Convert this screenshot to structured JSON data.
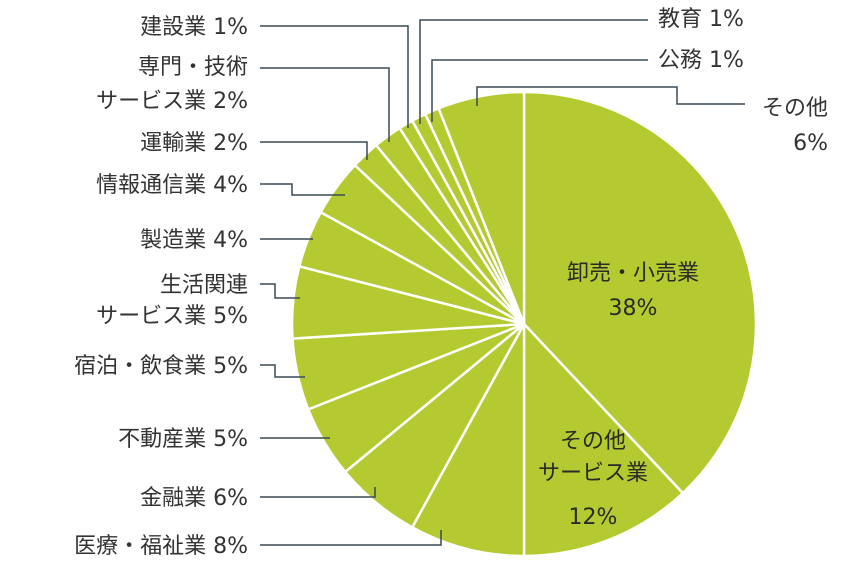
{
  "chart_data": {
    "type": "pie",
    "color": "#b5c930",
    "line_color": "#3a4a55",
    "slices": [
      {
        "name": "卸売・小売業",
        "value": 38,
        "label": [
          "卸売・小売業",
          "38%"
        ]
      },
      {
        "name": "その他サービス業",
        "value": 12,
        "label": [
          "その他",
          "サービス業",
          "12%"
        ]
      },
      {
        "name": "医療・福祉業",
        "value": 8,
        "label": [
          "医療・福祉業 8%"
        ]
      },
      {
        "name": "金融業",
        "value": 6,
        "label": [
          "金融業 6%"
        ]
      },
      {
        "name": "不動産業",
        "value": 5,
        "label": [
          "不動産業 5%"
        ]
      },
      {
        "name": "宿泊・飲食業",
        "value": 5,
        "label": [
          "宿泊・飲食業 5%"
        ]
      },
      {
        "name": "生活関連サービス業",
        "value": 5,
        "label": [
          "生活関連",
          "サービス業 5%"
        ]
      },
      {
        "name": "製造業",
        "value": 4,
        "label": [
          "製造業 4%"
        ]
      },
      {
        "name": "情報通信業",
        "value": 4,
        "label": [
          "情報通信業 4%"
        ]
      },
      {
        "name": "運輸業",
        "value": 2,
        "label": [
          "運輸業 2%"
        ]
      },
      {
        "name": "専門・技術サービス業",
        "value": 2,
        "label": [
          "専門・技術",
          "サービス業 2%"
        ]
      },
      {
        "name": "建設業",
        "value": 1,
        "label": [
          "建設業 1%"
        ]
      },
      {
        "name": "教育",
        "value": 1,
        "label": [
          "教育 1%"
        ]
      },
      {
        "name": "公務",
        "value": 1,
        "label": [
          "公務 1%"
        ]
      },
      {
        "name": "その他",
        "value": 6,
        "label": [
          "その他",
          "6%"
        ]
      }
    ]
  }
}
